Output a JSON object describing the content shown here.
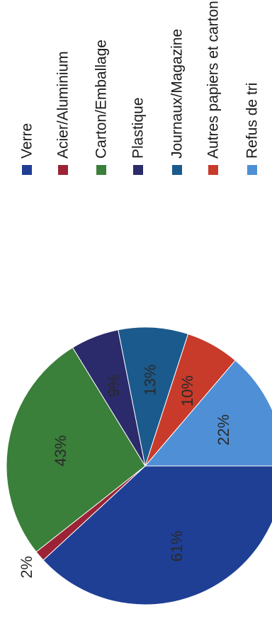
{
  "chart_data": {
    "type": "pie",
    "orientation": "rotated 90° counter-clockwise",
    "title": "",
    "legend_placement": "right",
    "labels": [
      "Verre",
      "Acier/Aluminium",
      "Carton/Emballage",
      "Plastique",
      "Journaux/Magazine",
      "Autres papiers et cartons",
      "Refus de tri"
    ],
    "colors": [
      "#1f3f95",
      "#9b2335",
      "#3a7f3a",
      "#2b2a6b",
      "#1b5a8c",
      "#c83a2a",
      "#4f8fd6"
    ],
    "values": [
      61,
      2,
      43,
      9,
      13,
      10,
      22
    ],
    "value_labels": [
      "61%",
      "2%",
      "43%",
      "9%",
      "13%",
      "10%",
      "22%"
    ]
  }
}
